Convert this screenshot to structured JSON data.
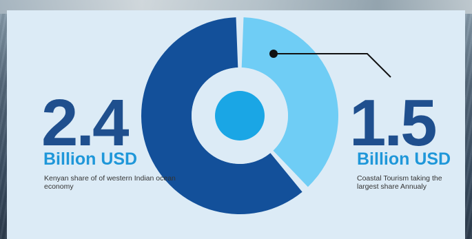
{
  "chart_data": {
    "type": "pie",
    "style": "donut",
    "categories": [
      "Kenyan share of western Indian ocean economy",
      "Coastal Tourism"
    ],
    "values": [
      2.4,
      1.5
    ],
    "units": "Billion USD",
    "colors": [
      "#13509a",
      "#6fcdf5"
    ],
    "center_dot_color": "#1aa6e5",
    "annotations": [
      {
        "value": "2.4",
        "unit": "Billion USD",
        "description": "Kenyan share of of western Indian ocean economy"
      },
      {
        "value": "1.5",
        "unit": "Billion USD",
        "description": "Coastal Tourism taking the largest share Annualy"
      }
    ]
  }
}
